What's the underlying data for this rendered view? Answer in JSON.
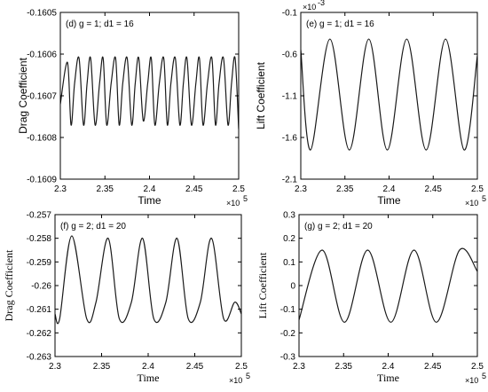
{
  "chart_data": [
    {
      "id": "d",
      "type": "line",
      "annotation": "(d) g = 1; d1 = 16",
      "xlabel": "Time",
      "ylabel": "Drag Coefficient",
      "xlim": [
        230000,
        250000
      ],
      "ylim": [
        -0.1609,
        -0.1605
      ],
      "xticks": [
        230000,
        235000,
        240000,
        245000,
        250000
      ],
      "xtick_labels": [
        "2.3",
        "2.35",
        "2.4",
        "2.45",
        "2.5"
      ],
      "x_exponent": "×10",
      "x_exponent_power": "5",
      "yticks": [
        -0.1605,
        -0.1606,
        -0.1607,
        -0.1608,
        -0.1609
      ],
      "ytick_labels": [
        "-0.1605",
        "-0.1606",
        "-0.1607",
        "-0.1608",
        "-0.1609"
      ],
      "y_exponent": "",
      "grid": false,
      "series": [
        {
          "x": [
            230000,
            230800,
            231200,
            231600,
            232100,
            232600,
            233000,
            233400,
            233900,
            234400,
            234800,
            235200,
            235700,
            236200,
            236600,
            237000,
            237500,
            238000,
            238400,
            238800,
            239300,
            239800,
            240200,
            240600,
            241100,
            241600,
            242000,
            242400,
            242900,
            243400,
            243800,
            244200,
            244700,
            245200,
            245600,
            246000,
            246500,
            247000,
            247400,
            247800,
            248300,
            248800,
            249200,
            249600,
            250000
          ],
          "y": [
            -0.16072,
            -0.16062,
            -0.16077,
            -0.16067,
            -0.16061,
            -0.16077,
            -0.16067,
            -0.16061,
            -0.16077,
            -0.16067,
            -0.16061,
            -0.16077,
            -0.16067,
            -0.16061,
            -0.16077,
            -0.16067,
            -0.16061,
            -0.16077,
            -0.16067,
            -0.16061,
            -0.16076,
            -0.16067,
            -0.16061,
            -0.16077,
            -0.16067,
            -0.16061,
            -0.16077,
            -0.16067,
            -0.16061,
            -0.16077,
            -0.16067,
            -0.16061,
            -0.16077,
            -0.16067,
            -0.16061,
            -0.16077,
            -0.16067,
            -0.16061,
            -0.16077,
            -0.16067,
            -0.16061,
            -0.16077,
            -0.16067,
            -0.16061,
            -0.16078
          ]
        }
      ]
    },
    {
      "id": "e",
      "type": "line",
      "annotation": "(e) g = 1; d1 = 16",
      "xlabel": "Time",
      "ylabel": "Lift Coefficient",
      "xlim": [
        230000,
        250000
      ],
      "ylim": [
        -2.1,
        -0.1
      ],
      "xticks": [
        230000,
        235000,
        240000,
        245000,
        250000
      ],
      "xtick_labels": [
        "2.3",
        "2.35",
        "2.4",
        "2.45",
        "2.5"
      ],
      "x_exponent": "×10",
      "x_exponent_power": "5",
      "yticks": [
        -0.1,
        -0.6,
        -1.1,
        -1.6,
        -2.1
      ],
      "ytick_labels": [
        "-0.1",
        "-0.6",
        "-1.1",
        "-1.6",
        "-2.1"
      ],
      "y_exponent": "×10",
      "y_exponent_power": "-3",
      "grid": false,
      "series": [
        {
          "x": [
            230000,
            231100,
            233300,
            235500,
            237700,
            239800,
            242000,
            244200,
            246400,
            248500,
            250000
          ],
          "y": [
            -0.55,
            -1.75,
            -0.42,
            -1.75,
            -0.42,
            -1.75,
            -0.42,
            -1.75,
            -0.42,
            -1.75,
            -0.62
          ]
        }
      ]
    },
    {
      "id": "f",
      "type": "line",
      "annotation": "(f) g = 2; d1 = 20",
      "xlabel": "Time",
      "ylabel": "Drag Coefficient",
      "xlim": [
        230000,
        250000
      ],
      "ylim": [
        -0.263,
        -0.257
      ],
      "xticks": [
        230000,
        235000,
        240000,
        245000,
        250000
      ],
      "xtick_labels": [
        "2.3",
        "2.35",
        "2.4",
        "2.45",
        "2.5"
      ],
      "x_exponent": "×10",
      "x_exponent_power": "5",
      "yticks": [
        -0.257,
        -0.258,
        -0.259,
        -0.26,
        -0.261,
        -0.262,
        -0.263
      ],
      "ytick_labels": [
        "-0.257",
        "-0.258",
        "-0.259",
        "-0.26",
        "-0.261",
        "-0.262",
        "-0.263"
      ],
      "y_exponent": "",
      "grid": false,
      "series": [
        {
          "x": [
            230000,
            230500,
            231800,
            233400,
            234400,
            235700,
            236900,
            238200,
            239400,
            240600,
            241900,
            243100,
            244300,
            245600,
            246800,
            248100,
            249300,
            250000
          ],
          "y": [
            -0.2612,
            -0.2614,
            -0.2579,
            -0.2614,
            -0.2607,
            -0.258,
            -0.2614,
            -0.2607,
            -0.258,
            -0.2614,
            -0.2607,
            -0.258,
            -0.2614,
            -0.2607,
            -0.258,
            -0.2614,
            -0.2607,
            -0.2612
          ]
        }
      ]
    },
    {
      "id": "g",
      "type": "line",
      "annotation": "(g) g = 2; d1 = 20",
      "xlabel": "Time",
      "ylabel": "Lift Coefficient",
      "xlim": [
        230000,
        250000
      ],
      "ylim": [
        -0.3,
        0.3
      ],
      "xticks": [
        230000,
        235000,
        240000,
        245000,
        250000
      ],
      "xtick_labels": [
        "2.3",
        "2.35",
        "2.4",
        "2.45",
        "2.5"
      ],
      "x_exponent": "×10",
      "x_exponent_power": "5",
      "yticks": [
        0.3,
        0.2,
        0.1,
        0,
        -0.1,
        -0.2,
        -0.3
      ],
      "ytick_labels": [
        "0.3",
        "0.2",
        "0.1",
        "0",
        "-0.1",
        "-0.2",
        "-0.3"
      ],
      "y_exponent": "",
      "grid": false,
      "series": [
        {
          "x": [
            230000,
            232600,
            235100,
            237700,
            240300,
            242900,
            245400,
            248000,
            250000
          ],
          "y": [
            -0.145,
            0.15,
            -0.155,
            0.15,
            -0.155,
            0.15,
            -0.155,
            0.15,
            0.06
          ]
        }
      ]
    }
  ],
  "colors": {
    "line": "#1a1a1a",
    "axes": "#000000",
    "background": "#ffffff"
  }
}
